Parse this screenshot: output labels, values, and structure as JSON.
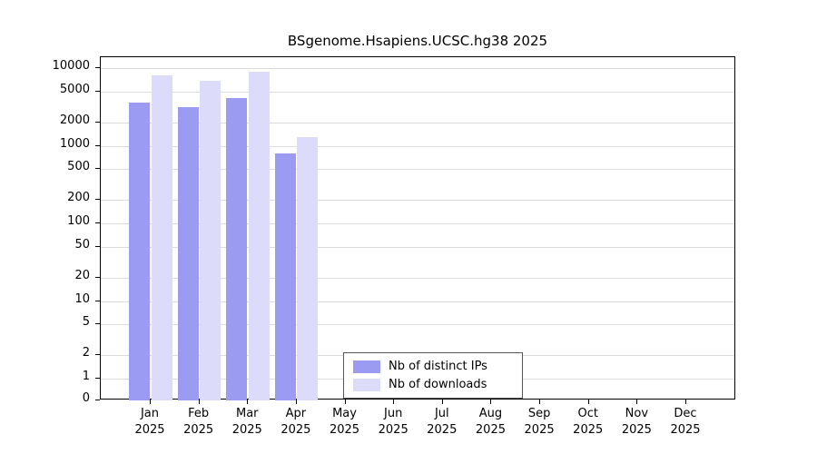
{
  "title": "BSgenome.Hsapiens.UCSC.hg38 2025",
  "chart_data": {
    "type": "bar",
    "title": "BSgenome.Hsapiens.UCSC.hg38 2025",
    "year": "2025",
    "categories": [
      "Jan",
      "Feb",
      "Mar",
      "Apr",
      "May",
      "Jun",
      "Jul",
      "Aug",
      "Sep",
      "Oct",
      "Nov",
      "Dec"
    ],
    "series": [
      {
        "name": "Nb of distinct IPs",
        "color": "#9b9bf2",
        "values": [
          3600,
          3100,
          4100,
          800,
          0,
          0,
          0,
          0,
          0,
          0,
          0,
          0
        ]
      },
      {
        "name": "Nb of downloads",
        "color": "#dcdcfa",
        "values": [
          8100,
          6800,
          8900,
          1300,
          0,
          0,
          0,
          0,
          0,
          0,
          0,
          0
        ]
      }
    ],
    "y_ticks": [
      0,
      1,
      2,
      5,
      10,
      20,
      50,
      100,
      200,
      500,
      1000,
      2000,
      5000,
      10000
    ],
    "y_scale": "log",
    "ylim": [
      0,
      10000
    ],
    "grid": true,
    "legend_position": "inside-bottom-center",
    "xlabel": "",
    "ylabel": ""
  }
}
